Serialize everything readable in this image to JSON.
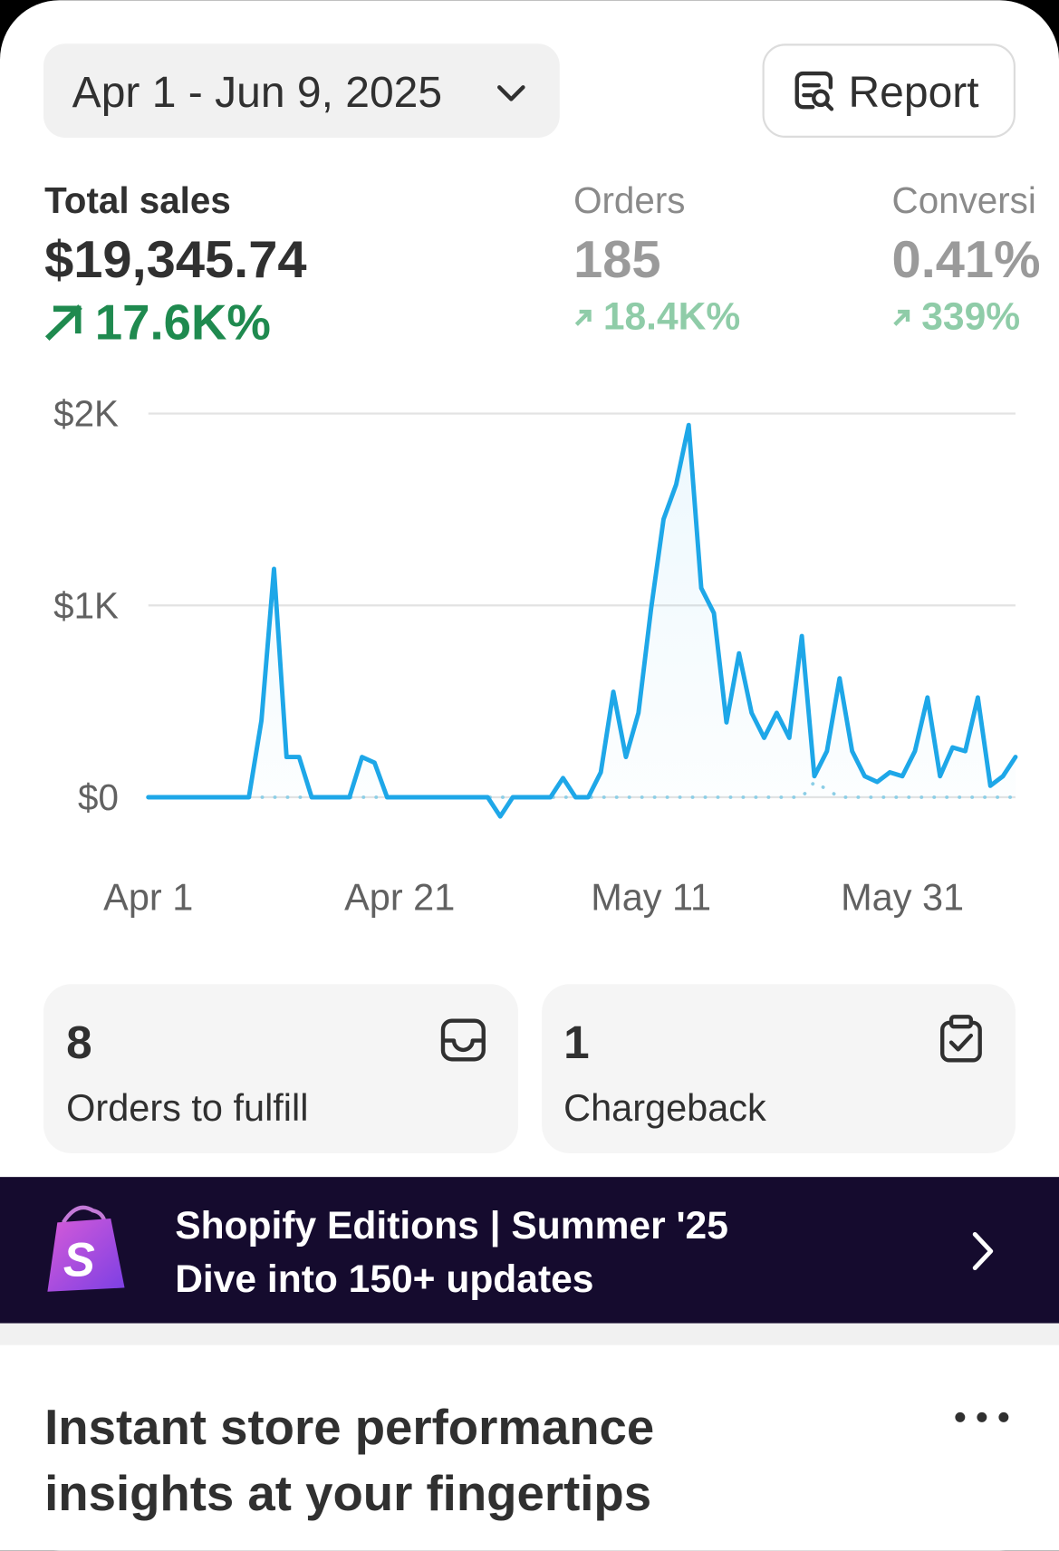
{
  "date_range": "Apr 1 - Jun 9, 2025",
  "report_button": "Report",
  "metrics": [
    {
      "label": "Total sales",
      "value": "$19,345.74",
      "change": "17.6K%"
    },
    {
      "label": "Orders",
      "value": "185",
      "change": "18.4K%"
    },
    {
      "label": "Conversi",
      "value": "0.41%",
      "change": "339%"
    }
  ],
  "chart_data": {
    "type": "line",
    "categories": [
      "Apr 1",
      null,
      null,
      null,
      null,
      null,
      null,
      null,
      null,
      null,
      null,
      null,
      null,
      null,
      null,
      null,
      null,
      null,
      null,
      null,
      "Apr 21",
      null,
      null,
      null,
      null,
      null,
      null,
      null,
      null,
      null,
      null,
      null,
      null,
      null,
      null,
      null,
      null,
      null,
      null,
      null,
      "May 11",
      null,
      null,
      null,
      null,
      null,
      null,
      null,
      null,
      null,
      null,
      null,
      null,
      null,
      null,
      null,
      null,
      null,
      null,
      null,
      "May 31",
      null,
      null,
      null,
      null,
      null,
      null,
      null,
      null,
      null
    ],
    "series": [
      {
        "color": "#8ecfe6",
        "dashed": true,
        "values": [
          0,
          0,
          0,
          0,
          0,
          0,
          0,
          0,
          0,
          0,
          0,
          0,
          0,
          0,
          0,
          0,
          0,
          0,
          0,
          0,
          0,
          0,
          0,
          0,
          0,
          0,
          0,
          0,
          0,
          0,
          0,
          0,
          0,
          0,
          0,
          0,
          0,
          0,
          0,
          0,
          0,
          0,
          0,
          0,
          0,
          0,
          0,
          0,
          0,
          0,
          0,
          0,
          0,
          80,
          40,
          0,
          0,
          0,
          0,
          0,
          0,
          0,
          0,
          0,
          0,
          0,
          0,
          0,
          0,
          0
        ]
      },
      {
        "color": "#1ea7e8",
        "dashed": false,
        "values": [
          0,
          0,
          0,
          0,
          0,
          0,
          0,
          0,
          0,
          400,
          1190,
          210,
          210,
          0,
          0,
          0,
          0,
          210,
          180,
          0,
          0,
          0,
          0,
          0,
          0,
          0,
          0,
          0,
          -100,
          0,
          0,
          0,
          0,
          100,
          0,
          0,
          130,
          550,
          210,
          440,
          980,
          1450,
          1630,
          1940,
          1090,
          960,
          390,
          750,
          440,
          310,
          440,
          310,
          840,
          110,
          240,
          620,
          240,
          110,
          80,
          130,
          110,
          240,
          520,
          110,
          260,
          240,
          520,
          60,
          110,
          210
        ]
      }
    ],
    "ylim": [
      -200,
      2000
    ],
    "yticks": [
      {
        "value": 0,
        "label": "$0"
      },
      {
        "value": 1000,
        "label": "$1K"
      },
      {
        "value": 2000,
        "label": "$2K"
      }
    ],
    "grid": true
  },
  "cards": [
    {
      "count": "8",
      "label": "Orders to fulfill"
    },
    {
      "count": "1",
      "label": "Chargeback"
    }
  ],
  "banner": {
    "title": "Shopify Editions | Summer '25",
    "subtitle": "Dive into 150+ updates"
  },
  "section": {
    "title_lines": [
      "Instant store performance",
      "insights at your fingertips"
    ]
  }
}
